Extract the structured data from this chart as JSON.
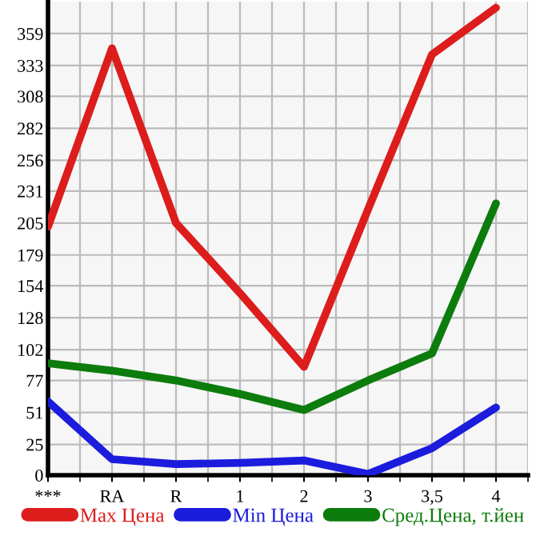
{
  "chart_data": {
    "type": "line",
    "categories": [
      "***",
      "RA",
      "R",
      "1",
      "2",
      "3",
      "3,5",
      "4"
    ],
    "series": [
      {
        "name": "Max Цена",
        "color": "#dd1c1c",
        "values": [
          202,
          347,
          205,
          148,
          88,
          216,
          342,
          380
        ]
      },
      {
        "name": "Min Цена",
        "color": "#1c1cdd",
        "values": [
          60,
          13,
          9,
          10,
          12,
          1,
          22,
          55
        ]
      },
      {
        "name": "Сред.Цена, т.йен",
        "color": "#0c7c0c",
        "values": [
          91,
          85,
          77,
          66,
          53,
          77,
          99,
          221
        ]
      }
    ],
    "ylim": [
      0,
      385
    ],
    "yticks": [
      0,
      25,
      51,
      77,
      102,
      128,
      154,
      179,
      205,
      231,
      256,
      282,
      308,
      333,
      359
    ],
    "grid": true,
    "legend": "bottom",
    "marker": "none",
    "line_style": "solid"
  }
}
